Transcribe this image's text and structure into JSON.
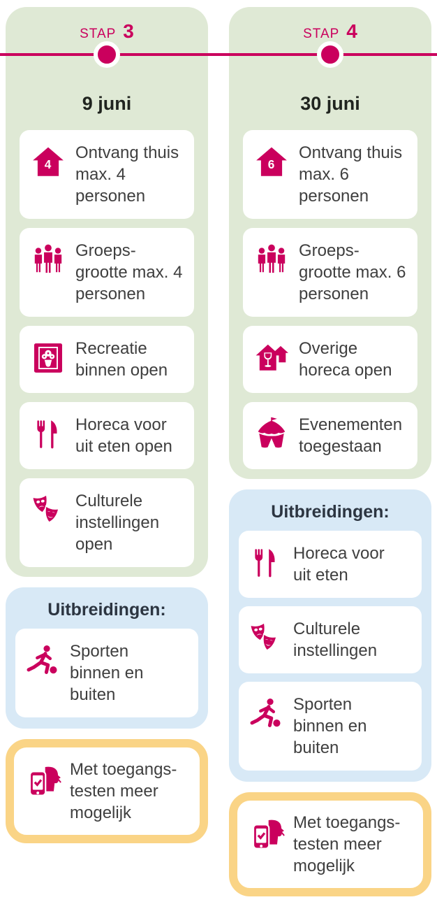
{
  "colors": {
    "accent": "#ca005d",
    "green_bg": "#dfe9d5",
    "blue_bg": "#d8e9f6",
    "yellow_border": "#fad486",
    "label_text": "#3f3f3f",
    "heading_text": "#20241f",
    "title_text": "#2c3541"
  },
  "timeline": {
    "line_color": "#ca005d",
    "dot_color": "#ca005d"
  },
  "columns": [
    {
      "step_label": "STAP",
      "step_number": "3",
      "date": "9 juni",
      "items": [
        {
          "icon": "house",
          "badge": "4",
          "label": "Ontvang thuis max. 4 personen"
        },
        {
          "icon": "group",
          "label": "Groeps-grootte max. 4 personen"
        },
        {
          "icon": "frame",
          "label": "Recreatie binnen open"
        },
        {
          "icon": "cutlery",
          "label": "Horeca voor uit eten open"
        },
        {
          "icon": "masks",
          "label": "Culturele instellingen open"
        }
      ],
      "uitbreidingen": {
        "title": "Uitbreidingen:",
        "items": [
          {
            "icon": "sports",
            "label": "Sporten binnen en buiten"
          }
        ]
      },
      "toegangstest": {
        "icon": "access-test",
        "label": "Met toegangs-testen meer mogelijk"
      }
    },
    {
      "step_label": "STAP",
      "step_number": "4",
      "date": "30 juni",
      "items": [
        {
          "icon": "house",
          "badge": "6",
          "label": "Ontvang thuis max. 6 personen"
        },
        {
          "icon": "group",
          "label": "Groeps-grootte max. 6 personen"
        },
        {
          "icon": "horeca-house",
          "label": "Overige horeca open"
        },
        {
          "icon": "tent",
          "label": "Evenementen toegestaan"
        }
      ],
      "uitbreidingen": {
        "title": "Uitbreidingen:",
        "items": [
          {
            "icon": "cutlery",
            "label": "Horeca voor uit eten"
          },
          {
            "icon": "masks",
            "label": "Culturele instellingen"
          },
          {
            "icon": "sports",
            "label": "Sporten binnen en buiten"
          }
        ]
      },
      "toegangstest": {
        "icon": "access-test",
        "label": "Met toegangs-testen meer mogelijk"
      }
    }
  ]
}
